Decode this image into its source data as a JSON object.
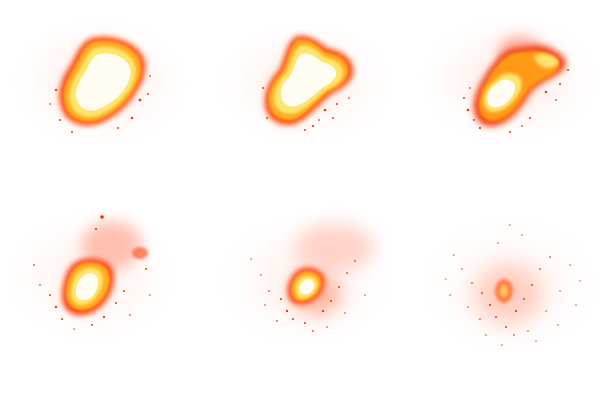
{
  "sprite_sheet": {
    "name": "explosion",
    "rows": 2,
    "columns": 3,
    "background": "#ffffff",
    "palette": {
      "core": "#fffdf2",
      "inner": "#ffe26a",
      "mid": "#ffb020",
      "outer": "#ff5a10",
      "rim": "#e8300c",
      "smoke": "#ff7a5a",
      "glow": "#fff1ec"
    },
    "frames": [
      {
        "index": 1,
        "stage": "flash"
      },
      {
        "index": 2,
        "stage": "burst"
      },
      {
        "index": 3,
        "stage": "breakup"
      },
      {
        "index": 4,
        "stage": "smoke"
      },
      {
        "index": 5,
        "stage": "embers"
      },
      {
        "index": 6,
        "stage": "dissipate"
      }
    ]
  }
}
